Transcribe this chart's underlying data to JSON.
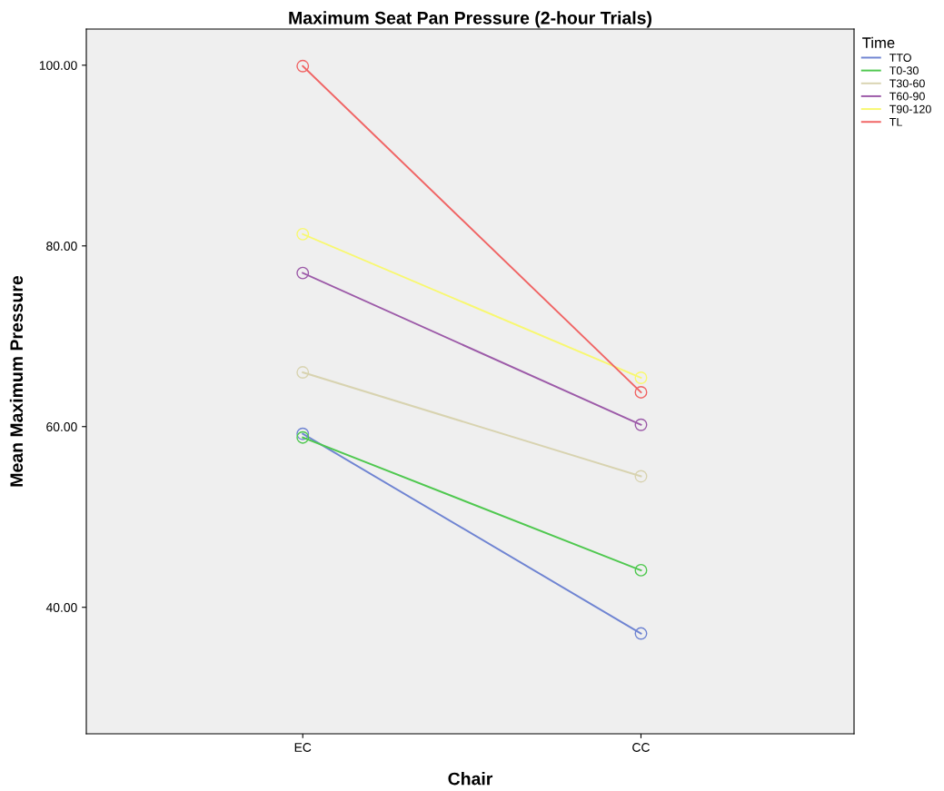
{
  "chart_data": {
    "type": "line",
    "title": "Maximum Seat Pan Pressure (2-hour Trials)",
    "xlabel": "Chair",
    "ylabel": "Mean Maximum Pressure",
    "legend_title": "Time",
    "categories": [
      "EC",
      "CC"
    ],
    "series": [
      {
        "name": "TTO",
        "color": "#6f84d2",
        "values": [
          59.2,
          37.1
        ]
      },
      {
        "name": "T0-30",
        "color": "#4fc84f",
        "values": [
          58.8,
          44.1
        ]
      },
      {
        "name": "T30-60",
        "color": "#d8d3b0",
        "values": [
          66.0,
          54.5
        ]
      },
      {
        "name": "T60-90",
        "color": "#9c5aa8",
        "values": [
          77.0,
          60.2
        ]
      },
      {
        "name": "T90-120",
        "color": "#f8f870",
        "values": [
          81.3,
          65.4
        ]
      },
      {
        "name": "TL",
        "color": "#f06464",
        "values": [
          99.9,
          63.8
        ]
      }
    ],
    "ylim": [
      26,
      104
    ],
    "yticks": [
      {
        "value": 40,
        "label": "40.00"
      },
      {
        "value": 60,
        "label": "60.00"
      },
      {
        "value": 80,
        "label": "80.00"
      },
      {
        "value": 100,
        "label": "100.00"
      }
    ],
    "grid": false,
    "legend": "right",
    "marker": "circle",
    "line_style": "solid"
  }
}
